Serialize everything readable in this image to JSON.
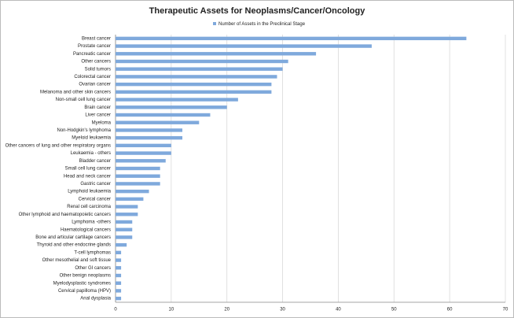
{
  "chart_data": {
    "type": "bar",
    "orientation": "horizontal",
    "title": "Therapeutic Assets for Neoplasms/Cancer/Oncology",
    "series": [
      {
        "name": "Number of Assets in the Preclinical Stage",
        "color": "#7fa9dc",
        "values": [
          63,
          46,
          36,
          31,
          30,
          29,
          28,
          28,
          22,
          20,
          17,
          15,
          12,
          12,
          10,
          10,
          9,
          8,
          8,
          8,
          6,
          5,
          4,
          4,
          3,
          3,
          3,
          2,
          1,
          1,
          1,
          1,
          1,
          1,
          1
        ]
      }
    ],
    "categories": [
      "Breast cancer",
      "Prostate cancer",
      "Pancreatic cancer",
      "Other cancers",
      "Solid tumors",
      "Colorectal cancer",
      "Ovarian cancer",
      "Melanoma and other skin cancers",
      "Non-small cell lung cancer",
      "Brain cancer",
      "Liver cancer",
      "Myeloma",
      "Non-Hodgkin's lymphoma",
      "Myeloid leukaemia",
      "Other cancers of lung and other respiratory organs",
      "Leukaemia - others",
      "Bladder cancer",
      "Small cell lung cancer",
      "Head and neck cancer",
      "Gastric cancer",
      "Lymphoid leukaemia",
      "Cervical cancer",
      "Renal cell carcinoma",
      "Other lymphoid and haematopoietic cancers",
      "Lymphoma -others",
      "Haematological cancers",
      "Bone and articular cartilage cancers",
      "Thyroid and other endocrine glands",
      "T-cell lymphomas",
      "Other mesothelial and soft tissue",
      "Other GI cancers",
      "Other benign neoplasms",
      "Myelodysplastic syndromes",
      "Cervical papilloma (HPV)",
      "Anal dysplasia"
    ],
    "xlim": [
      0,
      70
    ],
    "xticks": [
      0,
      10,
      20,
      30,
      40,
      50,
      60,
      70
    ],
    "grid": true,
    "legend": "top"
  }
}
